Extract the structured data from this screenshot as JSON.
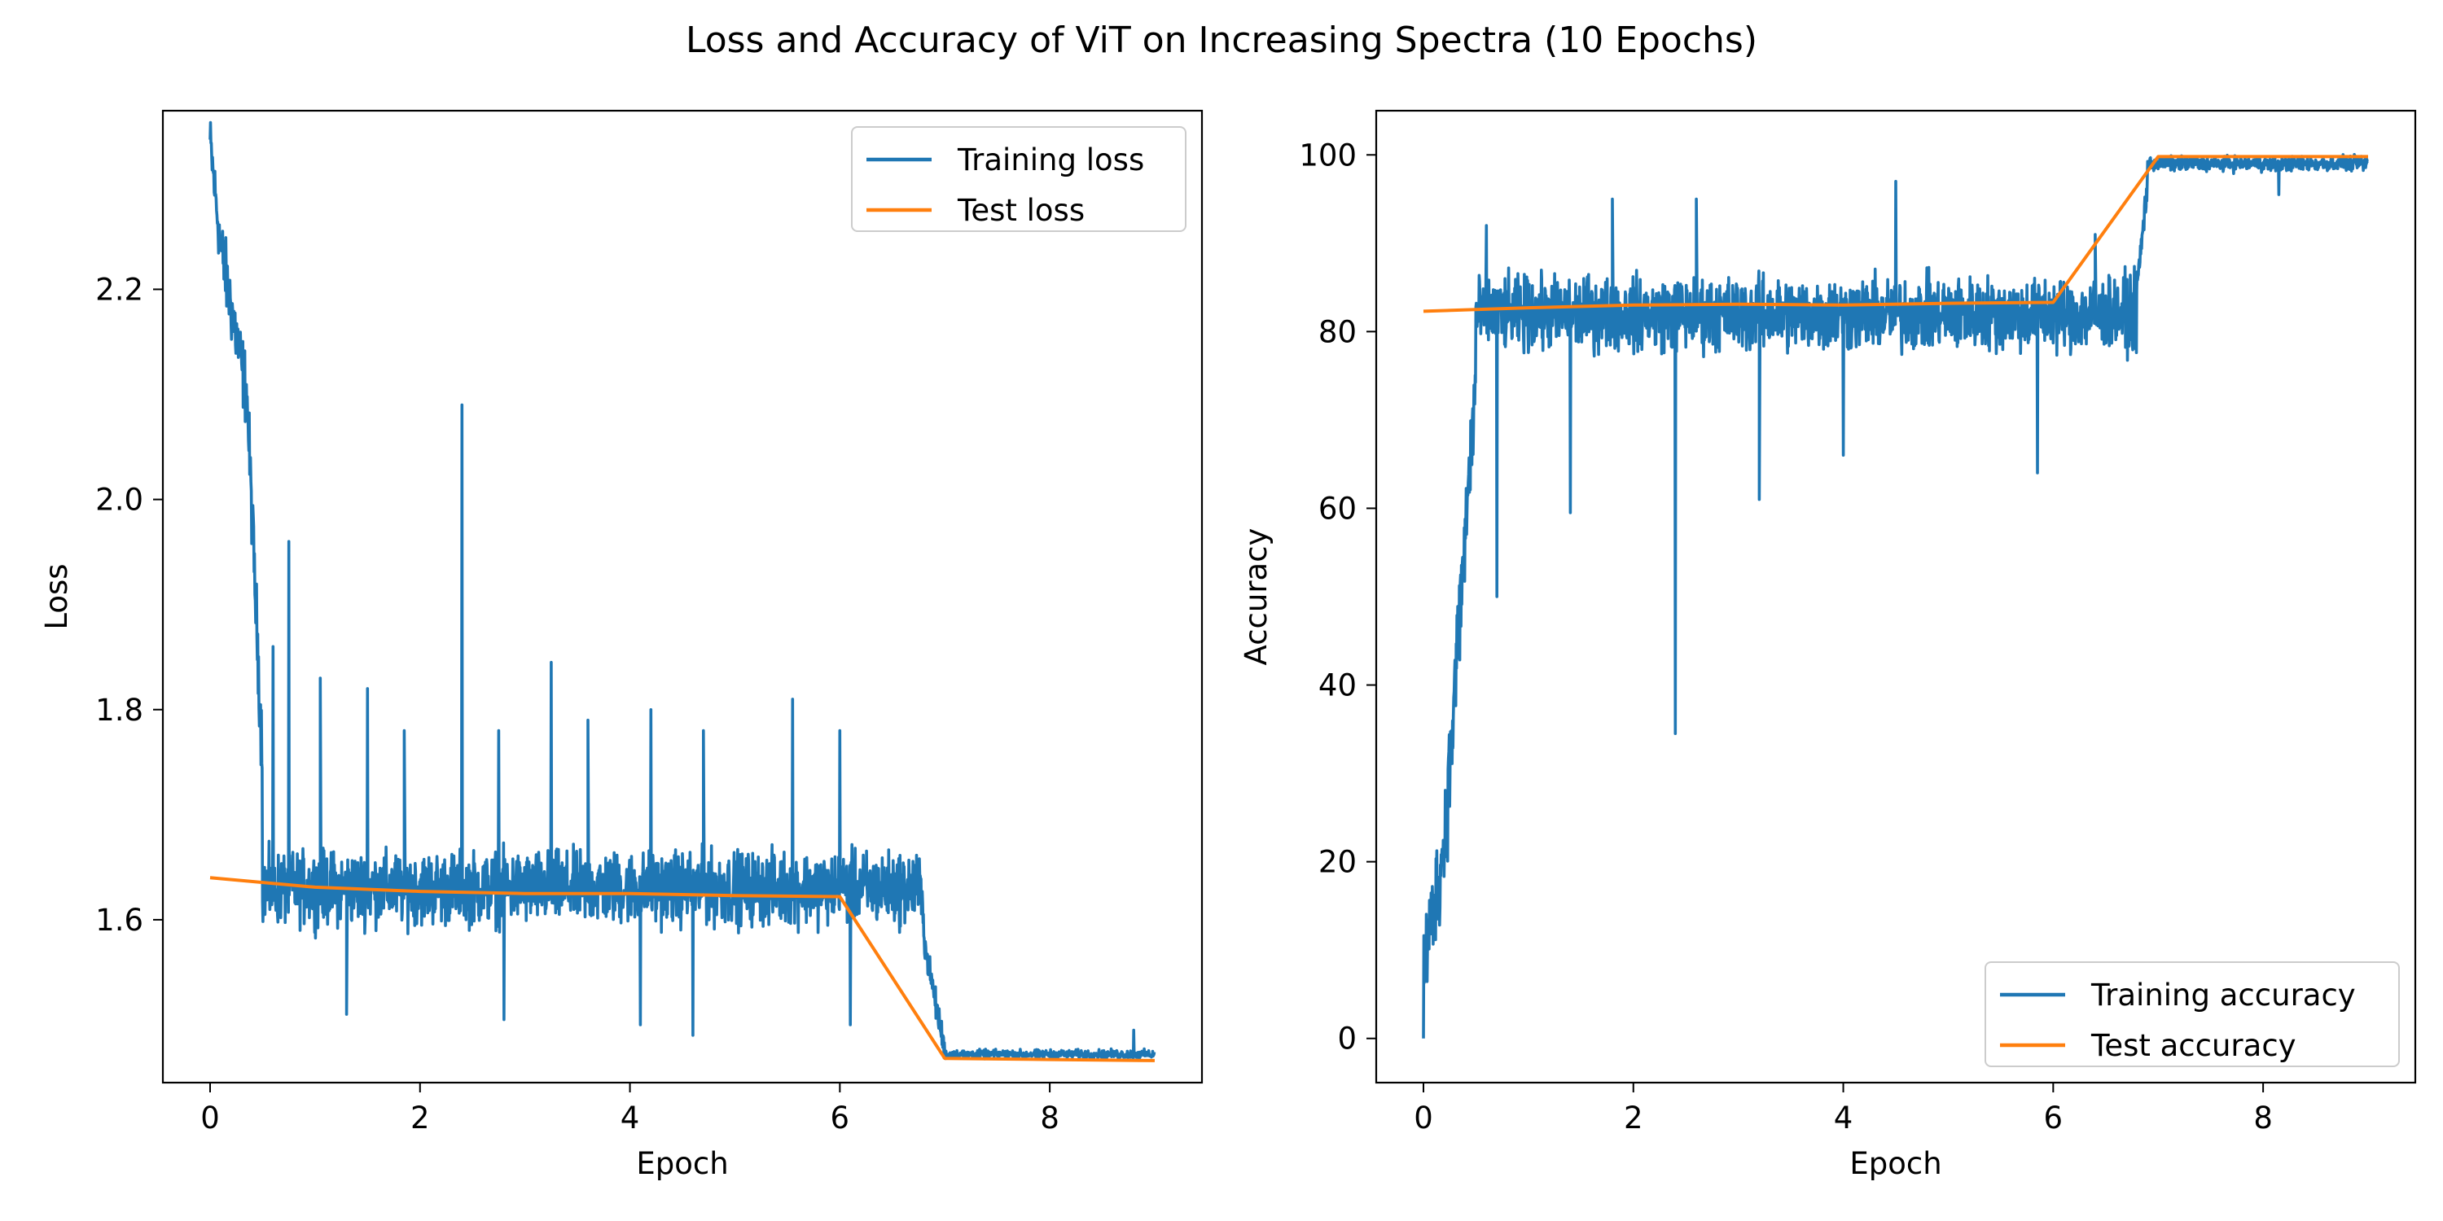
{
  "figure": {
    "title": "Loss and Accuracy of ViT on Increasing Spectra (10 Epochs)"
  },
  "colors": {
    "train": "#1f77b4",
    "test": "#ff7f0e"
  },
  "chart_data": [
    {
      "type": "line",
      "xlabel": "Epoch",
      "ylabel": "Loss",
      "xlim": [
        -0.45,
        9.45
      ],
      "ylim": [
        1.445,
        2.37
      ],
      "xticks": [
        0,
        2,
        4,
        6,
        8
      ],
      "yticks": [
        1.6,
        1.8,
        2.0,
        2.2
      ],
      "ytick_labels": [
        "1.6",
        "1.8",
        "2.0",
        "2.2"
      ],
      "grid": false,
      "legend_position": "top-right",
      "series": [
        {
          "name": "Training loss",
          "color": "#1f77b4",
          "segments": [
            {
              "x0": 0.0,
              "x1": 0.1,
              "start": 2.34,
              "end": 2.24,
              "noise": 0.04
            },
            {
              "x0": 0.1,
              "x1": 0.35,
              "start": 2.24,
              "end": 2.1,
              "noise": 0.05
            },
            {
              "x0": 0.35,
              "x1": 0.5,
              "start": 2.1,
              "end": 1.75,
              "noise": 0.05
            },
            {
              "x0": 0.5,
              "x1": 6.8,
              "start": 1.63,
              "end": 1.63,
              "noise": 0.05
            },
            {
              "x0": 6.8,
              "x1": 7.0,
              "start": 1.58,
              "end": 1.475,
              "noise": 0.02
            },
            {
              "x0": 7.0,
              "x1": 9.0,
              "start": 1.472,
              "end": 1.472,
              "noise": 0.006
            }
          ],
          "spikes": [
            {
              "x": 0.6,
              "y": 1.86
            },
            {
              "x": 0.75,
              "y": 1.96
            },
            {
              "x": 1.05,
              "y": 1.83
            },
            {
              "x": 1.5,
              "y": 1.82
            },
            {
              "x": 1.85,
              "y": 1.78
            },
            {
              "x": 2.4,
              "y": 2.09
            },
            {
              "x": 2.75,
              "y": 1.78
            },
            {
              "x": 3.25,
              "y": 1.845
            },
            {
              "x": 3.6,
              "y": 1.79
            },
            {
              "x": 4.2,
              "y": 1.8
            },
            {
              "x": 4.7,
              "y": 1.78
            },
            {
              "x": 5.55,
              "y": 1.81
            },
            {
              "x": 6.0,
              "y": 1.78
            },
            {
              "x": 1.3,
              "y": 1.51
            },
            {
              "x": 2.8,
              "y": 1.505
            },
            {
              "x": 4.1,
              "y": 1.5
            },
            {
              "x": 4.6,
              "y": 1.49
            },
            {
              "x": 6.1,
              "y": 1.5
            },
            {
              "x": 8.8,
              "y": 1.495
            }
          ]
        },
        {
          "name": "Test loss",
          "color": "#ff7f0e",
          "x": [
            0,
            1,
            2,
            3,
            4,
            5,
            6,
            7,
            8,
            9
          ],
          "y": [
            1.64,
            1.631,
            1.627,
            1.625,
            1.625,
            1.623,
            1.622,
            1.468,
            1.467,
            1.466
          ]
        }
      ]
    },
    {
      "type": "line",
      "xlabel": "Epoch",
      "ylabel": "Accuracy",
      "xlim": [
        -0.45,
        9.45
      ],
      "ylim": [
        -5,
        105
      ],
      "xticks": [
        0,
        2,
        4,
        6,
        8
      ],
      "yticks": [
        0,
        20,
        40,
        60,
        80,
        100
      ],
      "ytick_labels": [
        "0",
        "20",
        "40",
        "60",
        "80",
        "100"
      ],
      "grid": false,
      "legend_position": "bottom-right",
      "series": [
        {
          "name": "Training accuracy",
          "color": "#1f77b4",
          "segments": [
            {
              "x0": 0.0,
              "x1": 0.2,
              "start": 8,
              "end": 22,
              "noise": 8
            },
            {
              "x0": 0.2,
              "x1": 0.5,
              "start": 22,
              "end": 75,
              "noise": 9
            },
            {
              "x0": 0.5,
              "x1": 6.8,
              "start": 82,
              "end": 82,
              "noise": 6
            },
            {
              "x0": 6.8,
              "x1": 6.9,
              "start": 85,
              "end": 97,
              "noise": 3
            },
            {
              "x0": 6.9,
              "x1": 9.0,
              "start": 99,
              "end": 99,
              "noise": 1.2
            }
          ],
          "spikes": [
            {
              "x": 0.0,
              "y": 0
            },
            {
              "x": 0.7,
              "y": 50
            },
            {
              "x": 1.4,
              "y": 59.5
            },
            {
              "x": 2.4,
              "y": 34.5
            },
            {
              "x": 3.2,
              "y": 61
            },
            {
              "x": 4.0,
              "y": 66
            },
            {
              "x": 5.85,
              "y": 64
            },
            {
              "x": 0.6,
              "y": 92
            },
            {
              "x": 1.8,
              "y": 95
            },
            {
              "x": 2.6,
              "y": 95
            },
            {
              "x": 4.5,
              "y": 97
            },
            {
              "x": 6.4,
              "y": 91
            },
            {
              "x": 8.15,
              "y": 95.5
            }
          ]
        },
        {
          "name": "Test accuracy",
          "color": "#ff7f0e",
          "x": [
            0,
            1,
            2,
            3,
            4,
            5,
            6,
            7,
            8,
            9
          ],
          "y": [
            82.3,
            82.7,
            83.0,
            83.1,
            83.0,
            83.2,
            83.3,
            99.8,
            99.8,
            99.8
          ]
        }
      ]
    }
  ]
}
